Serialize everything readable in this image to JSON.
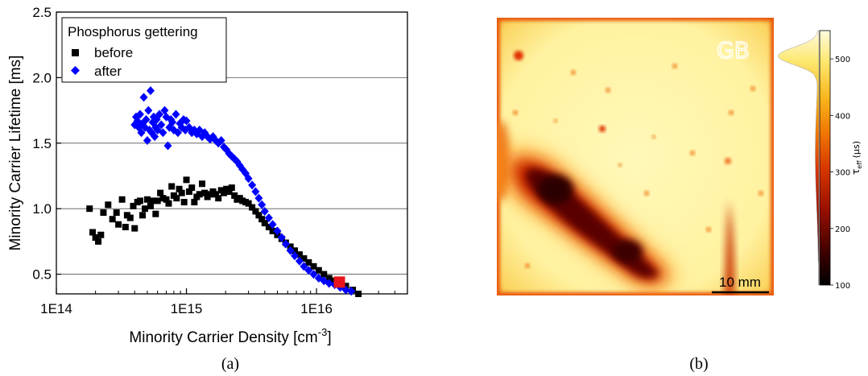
{
  "chart_data": [
    {
      "type": "scatter",
      "panel_label": "(a)",
      "xlabel": "Minority Carrier Density [cm",
      "xlabel_sup": "-3",
      "xlabel_end": "]",
      "ylabel": "Minority Carrier Lifetime [ms]",
      "xscale": "log",
      "xlim": [
        100000000000000.0,
        5e+16
      ],
      "ylim": [
        0.35,
        2.5
      ],
      "x_ticks": [
        100000000000000.0,
        1000000000000000.0,
        1e+16
      ],
      "x_tick_labels": [
        "1E14",
        "1E15",
        "1E16"
      ],
      "y_ticks": [
        0.5,
        1.0,
        1.5,
        2.0,
        2.5
      ],
      "y_tick_labels": [
        "0.5",
        "1.0",
        "1.5",
        "2.0",
        "2.5"
      ],
      "grid": "horizontal",
      "legend_title": "Phosphorus gettering",
      "legend_position": "top-left",
      "series": [
        {
          "name": "before",
          "marker": "square",
          "color": "#000000",
          "x": [
            180000000000000.0,
            190000000000000.0,
            200000000000000.0,
            210000000000000.0,
            220000000000000.0,
            230000000000000.0,
            250000000000000.0,
            270000000000000.0,
            290000000000000.0,
            300000000000000.0,
            320000000000000.0,
            340000000000000.0,
            350000000000000.0,
            370000000000000.0,
            390000000000000.0,
            400000000000000.0,
            420000000000000.0,
            440000000000000.0,
            460000000000000.0,
            480000000000000.0,
            500000000000000.0,
            530000000000000.0,
            550000000000000.0,
            580000000000000.0,
            600000000000000.0,
            630000000000000.0,
            660000000000000.0,
            700000000000000.0,
            730000000000000.0,
            770000000000000.0,
            800000000000000.0,
            840000000000000.0,
            880000000000000.0,
            920000000000000.0,
            960000000000000.0,
            1000000000000000.0,
            1050000000000000.0,
            1100000000000000.0,
            1150000000000000.0,
            1200000000000000.0,
            1260000000000000.0,
            1320000000000000.0,
            1380000000000000.0,
            1450000000000000.0,
            1520000000000000.0,
            1600000000000000.0,
            1680000000000000.0,
            1760000000000000.0,
            1850000000000000.0,
            1940000000000000.0,
            2030000000000000.0,
            2130000000000000.0,
            2230000000000000.0,
            2340000000000000.0,
            2450000000000000.0,
            2570000000000000.0,
            2700000000000000.0,
            2850000000000000.0,
            3000000000000000.0,
            3200000000000000.0,
            3400000000000000.0,
            3600000000000000.0,
            3800000000000000.0,
            4000000000000000.0,
            4300000000000000.0,
            4600000000000000.0,
            5000000000000000.0,
            5400000000000000.0,
            5800000000000000.0,
            6300000000000000.0,
            6800000000000000.0,
            7400000000000000.0,
            8000000000000000.0,
            8700000000000000.0,
            9500000000000000.0,
            1.04e+16,
            1.14e+16,
            1.25e+16,
            1.38e+16,
            1.52e+16,
            1.68e+16,
            1.9e+16,
            2.1e+16
          ],
          "y": [
            1.0,
            0.82,
            0.78,
            0.75,
            0.8,
            0.97,
            1.03,
            0.92,
            0.97,
            0.88,
            1.07,
            0.86,
            0.95,
            0.93,
            1.02,
            0.85,
            1.05,
            1.06,
            0.95,
            1.0,
            1.07,
            1.02,
            1.06,
            0.96,
            1.06,
            1.12,
            1.08,
            1.07,
            1.04,
            1.17,
            1.1,
            1.08,
            1.15,
            1.12,
            1.05,
            1.22,
            1.13,
            1.16,
            1.05,
            1.09,
            1.11,
            1.19,
            1.12,
            1.09,
            1.11,
            1.13,
            1.11,
            1.08,
            1.14,
            1.12,
            1.15,
            1.13,
            1.16,
            1.1,
            1.07,
            1.08,
            1.06,
            1.05,
            1.04,
            1.01,
            0.98,
            0.95,
            0.92,
            0.89,
            0.86,
            0.83,
            0.8,
            0.77,
            0.74,
            0.71,
            0.68,
            0.65,
            0.62,
            0.59,
            0.56,
            0.53,
            0.5,
            0.47,
            0.45,
            0.43,
            0.41,
            0.38,
            0.35
          ]
        },
        {
          "name": "after",
          "marker": "diamond",
          "color": "#0000ff",
          "x": [
            400000000000000.0,
            410000000000000.0,
            420000000000000.0,
            430000000000000.0,
            440000000000000.0,
            450000000000000.0,
            460000000000000.0,
            470000000000000.0,
            480000000000000.0,
            490000000000000.0,
            500000000000000.0,
            510000000000000.0,
            520000000000000.0,
            530000000000000.0,
            540000000000000.0,
            550000000000000.0,
            560000000000000.0,
            570000000000000.0,
            580000000000000.0,
            590000000000000.0,
            600000000000000.0,
            620000000000000.0,
            640000000000000.0,
            660000000000000.0,
            680000000000000.0,
            700000000000000.0,
            720000000000000.0,
            740000000000000.0,
            760000000000000.0,
            780000000000000.0,
            800000000000000.0,
            830000000000000.0,
            860000000000000.0,
            890000000000000.0,
            920000000000000.0,
            950000000000000.0,
            980000000000000.0,
            1000000000000000.0,
            1050000000000000.0,
            1100000000000000.0,
            1150000000000000.0,
            1200000000000000.0,
            1260000000000000.0,
            1320000000000000.0,
            1380000000000000.0,
            1450000000000000.0,
            1520000000000000.0,
            1600000000000000.0,
            1680000000000000.0,
            1760000000000000.0,
            1850000000000000.0,
            1940000000000000.0,
            2030000000000000.0,
            2130000000000000.0,
            2230000000000000.0,
            2340000000000000.0,
            2450000000000000.0,
            2570000000000000.0,
            2700000000000000.0,
            2850000000000000.0,
            3000000000000000.0,
            3200000000000000.0,
            3400000000000000.0,
            3600000000000000.0,
            3800000000000000.0,
            4000000000000000.0,
            4300000000000000.0,
            4600000000000000.0,
            5000000000000000.0,
            5400000000000000.0,
            5800000000000000.0,
            6300000000000000.0,
            6800000000000000.0,
            7400000000000000.0,
            8000000000000000.0,
            8700000000000000.0,
            9500000000000000.0,
            1.04e+16,
            1.14e+16,
            1.25e+16,
            1.38e+16,
            1.52e+16,
            1.68e+16,
            1.85e+16
          ],
          "y": [
            1.64,
            1.7,
            1.67,
            1.62,
            1.72,
            1.58,
            1.65,
            1.85,
            1.62,
            1.68,
            1.52,
            1.75,
            1.6,
            1.9,
            1.58,
            1.66,
            1.7,
            1.55,
            1.62,
            1.68,
            1.6,
            1.72,
            1.64,
            1.58,
            1.75,
            1.7,
            1.48,
            1.62,
            1.68,
            1.66,
            1.6,
            1.72,
            1.58,
            1.65,
            1.62,
            1.68,
            1.6,
            1.67,
            1.62,
            1.58,
            1.6,
            1.57,
            1.6,
            1.55,
            1.58,
            1.55,
            1.53,
            1.55,
            1.52,
            1.5,
            1.52,
            1.47,
            1.45,
            1.42,
            1.4,
            1.38,
            1.36,
            1.33,
            1.3,
            1.27,
            1.23,
            1.18,
            1.13,
            1.08,
            1.03,
            0.98,
            0.93,
            0.88,
            0.83,
            0.78,
            0.73,
            0.68,
            0.64,
            0.6,
            0.56,
            0.53,
            0.5,
            0.47,
            0.45,
            0.43,
            0.42,
            0.4,
            0.38,
            0.37
          ]
        }
      ],
      "highlight_point": {
        "x": 1.5e+16,
        "y": 0.44,
        "color": "#e8161c",
        "marker": "square"
      }
    },
    {
      "type": "heatmap",
      "panel_label": "(b)",
      "annotation": "GB",
      "scalebar_label": "10 mm",
      "colorbar_label_main": "τ",
      "colorbar_label_sub": "eff",
      "colorbar_label_unit": "(µs)",
      "colorbar_range": [
        100,
        550
      ],
      "colorbar_ticks": [
        100,
        200,
        300,
        400,
        500
      ],
      "colorbar_tick_labels": [
        "100",
        "200",
        "300",
        "400",
        "500"
      ],
      "colormap": [
        "#000000",
        "#5a0000",
        "#b81800",
        "#ee5500",
        "#f8a000",
        "#fbe040",
        "#fffbd8"
      ]
    }
  ]
}
